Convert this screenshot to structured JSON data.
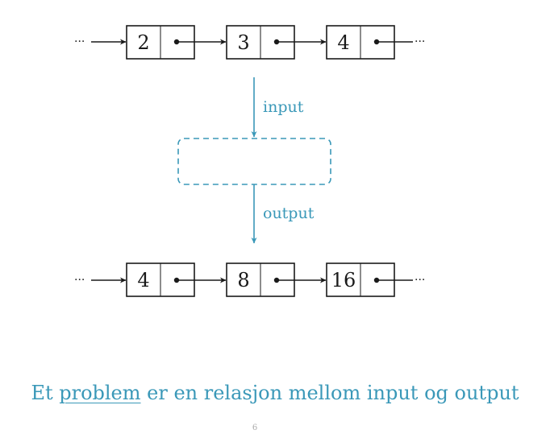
{
  "colors": {
    "accent": "#3a98b8",
    "ink": "#1a1a1a",
    "page_number": "#aaaaaa"
  },
  "input_list": {
    "leading_ellipsis": "···",
    "trailing_ellipsis": "···",
    "values": [
      "2",
      "3",
      "4"
    ]
  },
  "output_list": {
    "leading_ellipsis": "···",
    "trailing_ellipsis": "···",
    "values": [
      "4",
      "8",
      "16"
    ]
  },
  "transform": {
    "input_label": "input",
    "output_label": "output"
  },
  "caption": {
    "prefix": "Et ",
    "term": "problem",
    "suffix": " er en relasjon mellom input og output"
  },
  "page_number": "6"
}
